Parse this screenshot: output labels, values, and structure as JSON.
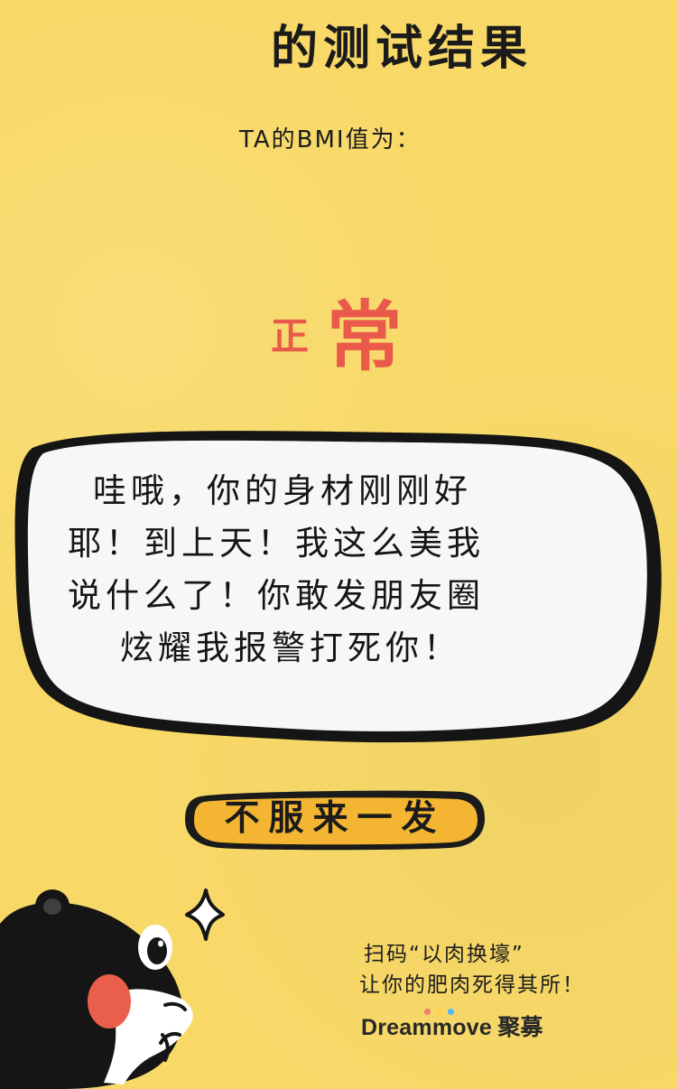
{
  "header": {
    "title": "的测试结果"
  },
  "result": {
    "label": "TA的BMI值为：",
    "value_small": "正",
    "value_large": "常"
  },
  "message": {
    "lines": [
      "哇哦，你的身材刚刚好",
      "耶！到上天！我这么美我",
      "说什么了！你敢发朋友圈",
      "炫耀我报警打死你！"
    ]
  },
  "action": {
    "button_label": "不服来一发"
  },
  "footer": {
    "line1": "扫码“以肉换壕”",
    "line2": "让你的肥肉死得其所！",
    "brand_name": "Dreammove",
    "brand_cn": "聚募"
  },
  "icons": {
    "sparkle": "sparkle-icon",
    "bear": "bear-illustration",
    "brand_dots": "brand-dots-icon"
  },
  "colors": {
    "background": "#f8d968",
    "accent_red": "#ea5a4b",
    "button_fill": "#f4b532",
    "bubble_fill": "#f7f7f7",
    "brand_dot_1": "#ef7d73",
    "brand_dot_2": "#ffd14d",
    "brand_dot_3": "#52b7ff"
  }
}
